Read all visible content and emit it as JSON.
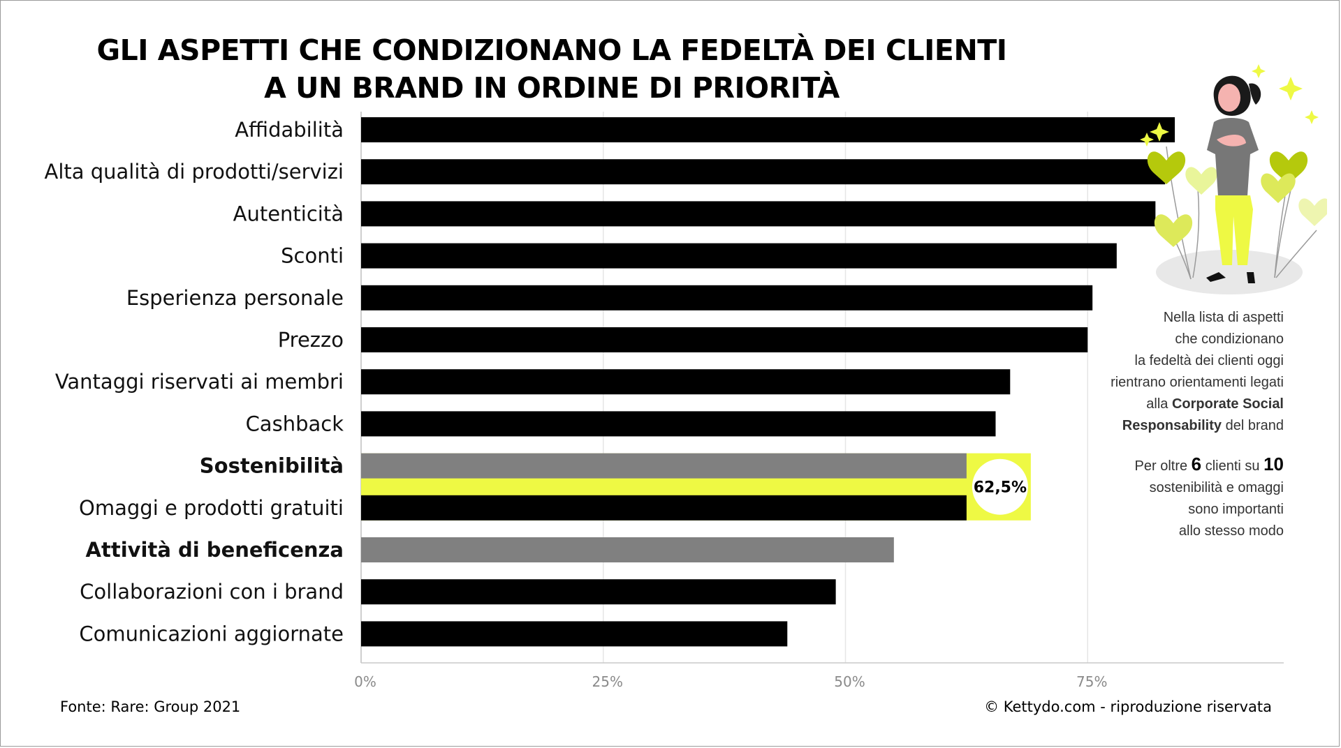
{
  "title_line1": "GLI ASPETTI CHE CONDIZIONANO LA FEDELTÀ DEI CLIENTI",
  "title_line2": "A UN BRAND IN ORDINE DI PRIORITÀ",
  "colors": {
    "bar": "#000000",
    "highlight_bar": "#808080",
    "accent": "#eef944",
    "grid": "#e6e6e6"
  },
  "chart_data": {
    "type": "bar",
    "orientation": "horizontal",
    "categories": [
      "Affidabilità",
      "Alta qualità di prodotti/servizi",
      "Autenticità",
      "Sconti",
      "Esperienza personale",
      "Prezzo",
      "Vantaggi riservati ai membri",
      "Cashback",
      "Sostenibilità",
      "Omaggi e prodotti gratuiti",
      "Attività di beneficenza",
      "Collaborazioni con i brand",
      "Comunicazioni aggiornate"
    ],
    "values": [
      84,
      83,
      82,
      78,
      75.5,
      75,
      67,
      65.5,
      62.5,
      62.5,
      55,
      49,
      44
    ],
    "highlighted": [
      false,
      false,
      false,
      false,
      false,
      false,
      false,
      false,
      true,
      false,
      true,
      false,
      false
    ],
    "callout": {
      "label": "62,5%",
      "categories": [
        "Sostenibilità",
        "Omaggi e prodotti gratuiti"
      ]
    },
    "x_ticks": [
      "0%",
      "25%",
      "50%",
      "75%"
    ],
    "x_tick_values": [
      0,
      25,
      50,
      75
    ],
    "xlim": [
      0,
      95
    ],
    "grid": true
  },
  "sidebar": {
    "note_lines": [
      "Nella lista di aspetti",
      "che condizionano",
      "la fedeltà dei clienti oggi",
      "rientrano orientamenti legati"
    ],
    "note_line5_pre": "alla ",
    "note_line5_bold": "Corporate Social",
    "note_line6_bold": "Responsability",
    "note_line6_post": " del brand",
    "stat_pre": "Per oltre ",
    "stat_num1": "6",
    "stat_mid": " clienti su ",
    "stat_num2": "10",
    "stat_lines": [
      "sostenibilità e omaggi",
      "sono importanti",
      "allo stesso modo"
    ]
  },
  "footer": {
    "source": "Fonte: Rare: Group 2021",
    "copyright": "© Kettydo.com - riproduzione riservata"
  }
}
